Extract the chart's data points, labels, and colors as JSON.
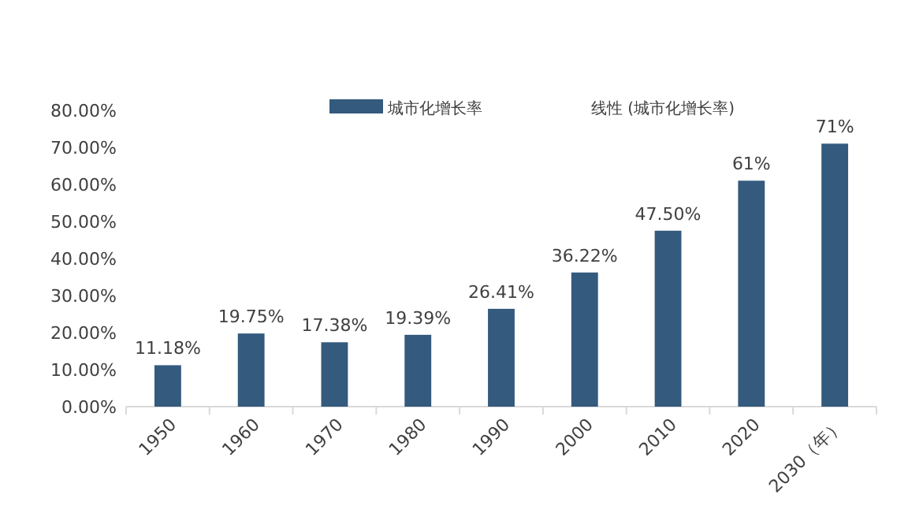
{
  "chart_data": {
    "type": "bar",
    "categories": [
      "1950",
      "1960",
      "1970",
      "1980",
      "1990",
      "2000",
      "2010",
      "2020",
      "2030（年）"
    ],
    "series": [
      {
        "name": "城市化增长率",
        "color": "#345a7e",
        "values": [
          11.18,
          19.75,
          17.38,
          19.39,
          26.41,
          36.22,
          47.5,
          61,
          71
        ],
        "value_labels": [
          "11.18%",
          "19.75%",
          "17.38%",
          "19.39%",
          "26.41%",
          "36.22%",
          "47.50%",
          "61%",
          "71%"
        ]
      }
    ],
    "annotations": [
      "线性 (城市化增长率)"
    ],
    "ylim": [
      0,
      80
    ],
    "yticks": [
      {
        "value": 0,
        "label": "0.00%"
      },
      {
        "value": 10,
        "label": "10.00%"
      },
      {
        "value": 20,
        "label": "20.00%"
      },
      {
        "value": 30,
        "label": "30.00%"
      },
      {
        "value": 40,
        "label": "40.00%"
      },
      {
        "value": 50,
        "label": "50.00%"
      },
      {
        "value": 60,
        "label": "60.00%"
      },
      {
        "value": 70,
        "label": "70.00%"
      },
      {
        "value": 80,
        "label": "80.00%"
      }
    ],
    "grid": false,
    "legend": "top"
  }
}
